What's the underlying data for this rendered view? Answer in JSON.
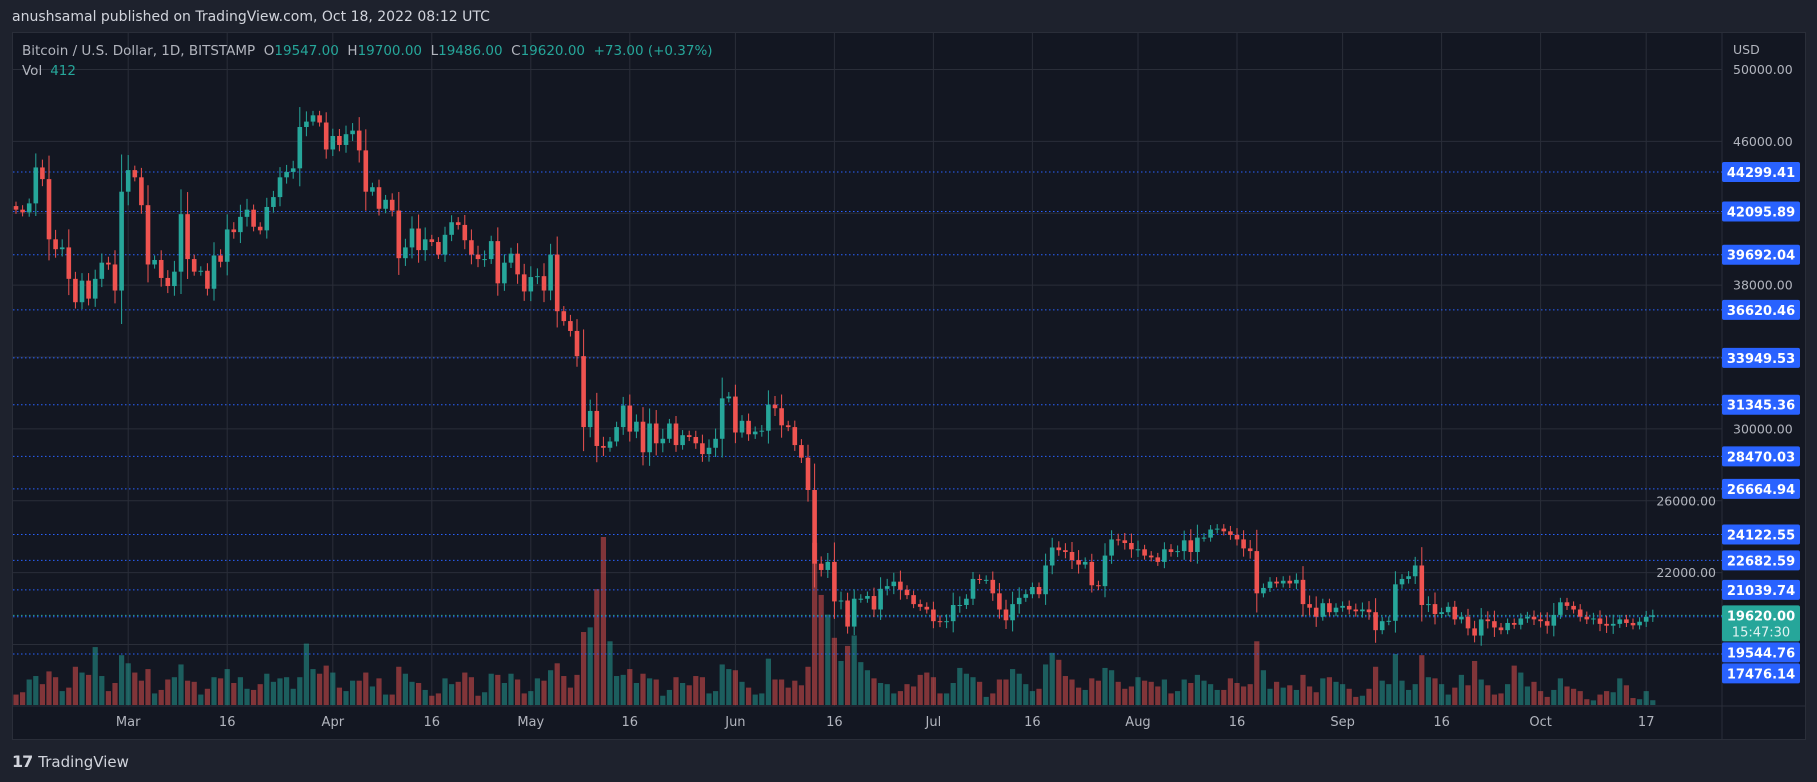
{
  "header": {
    "published": "anushsamal published on TradingView.com, Oct 18, 2022 08:12 UTC"
  },
  "legend": {
    "symbol": "Bitcoin / U.S. Dollar, 1D, BITSTAMP",
    "o_label": "O",
    "o": "19547.00",
    "h_label": "H",
    "h": "19700.00",
    "l_label": "L",
    "l": "19486.00",
    "c_label": "C",
    "c": "19620.00",
    "change": "+73.00 (+0.37%)",
    "vol_label": "Vol",
    "vol": "412"
  },
  "price_axis": {
    "currency": "USD",
    "countdown": "15:47:30"
  },
  "footer": {
    "brand": "TradingView",
    "logo_icon": "tradingview-logo-icon"
  },
  "colors": {
    "up": "#26a69a",
    "down": "#ef5350",
    "level": "#2962ff",
    "background": "#131722",
    "grid": "#2a2e39"
  },
  "chart_data": {
    "type": "candlestick",
    "title": "Bitcoin / U.S. Dollar, 1D, BITSTAMP",
    "first_date": "2022-02-12",
    "first_open": 42400,
    "ylim": [
      16000,
      51000
    ],
    "y_ticks": [
      50000,
      46000,
      38000,
      30000,
      26000,
      22000
    ],
    "grid": true,
    "x_ticks": [
      {
        "date": "2022-03-01",
        "label": "Mar"
      },
      {
        "date": "2022-03-16",
        "label": "16"
      },
      {
        "date": "2022-04-01",
        "label": "Apr"
      },
      {
        "date": "2022-04-16",
        "label": "16"
      },
      {
        "date": "2022-05-01",
        "label": "May"
      },
      {
        "date": "2022-05-16",
        "label": "16"
      },
      {
        "date": "2022-06-01",
        "label": "Jun"
      },
      {
        "date": "2022-06-16",
        "label": "16"
      },
      {
        "date": "2022-07-01",
        "label": "Jul"
      },
      {
        "date": "2022-07-16",
        "label": "16"
      },
      {
        "date": "2022-08-01",
        "label": "Aug"
      },
      {
        "date": "2022-08-16",
        "label": "16"
      },
      {
        "date": "2022-09-01",
        "label": "Sep"
      },
      {
        "date": "2022-09-16",
        "label": "16"
      },
      {
        "date": "2022-10-01",
        "label": "Oct"
      },
      {
        "date": "2022-10-17",
        "label": "17"
      }
    ],
    "levels": [
      "44299.41",
      "42095.89",
      "39692.04",
      "36620.46",
      "33949.53",
      "31345.36",
      "28470.03",
      "26664.94",
      "24122.55",
      "22682.59",
      "21039.74",
      "19544.76",
      "17476.14"
    ],
    "last_price": "19620.00",
    "close": [
      42200,
      42050,
      42550,
      44550,
      43900,
      40550,
      40000,
      40100,
      38350,
      37050,
      38250,
      37250,
      38350,
      39250,
      39150,
      37700,
      43200,
      44400,
      44000,
      42450,
      39150,
      39400,
      38400,
      37950,
      38750,
      41950,
      39450,
      38750,
      38800,
      37800,
      39650,
      39300,
      41100,
      40950,
      41800,
      42200,
      41250,
      41050,
      42350,
      42900,
      44000,
      44300,
      44500,
      46800,
      47100,
      47450,
      47050,
      45550,
      46300,
      45800,
      46400,
      46600,
      45500,
      43200,
      43450,
      42250,
      42750,
      42150,
      39500,
      40100,
      41150,
      39950,
      40550,
      40400,
      39700,
      40800,
      41500,
      41350,
      40500,
      39700,
      39450,
      39450,
      40450,
      38100,
      39250,
      39750,
      38600,
      37650,
      38450,
      38500,
      37700,
      39700,
      36550,
      36000,
      35450,
      34050,
      30100,
      31000,
      29050,
      28950,
      29300,
      30100,
      31300,
      29850,
      30400,
      28700,
      30300,
      29200,
      29450,
      30300,
      29100,
      29650,
      29550,
      29200,
      28600,
      28950,
      29450,
      31700,
      31800,
      29800,
      30450,
      29700,
      29850,
      29900,
      31350,
      31150,
      30200,
      30100,
      29100,
      28400,
      26600,
      22500,
      22150,
      22600,
      20400,
      20450,
      19000,
      20550,
      20550,
      20700,
      19950,
      21100,
      21250,
      21500,
      21050,
      20750,
      20250,
      20100,
      19950,
      19300,
      19250,
      19300,
      20200,
      20200,
      20550,
      21650,
      21600,
      21600,
      20850,
      19950,
      19350,
      20250,
      20600,
      20800,
      21200,
      20800,
      22400,
      23400,
      23250,
      23150,
      22700,
      22450,
      22600,
      21300,
      21250,
      22950,
      23850,
      23800,
      23650,
      23300,
      23300,
      22950,
      22850,
      22600,
      23300,
      23150,
      23200,
      23800,
      23150,
      23950,
      23950,
      24400,
      24450,
      24300,
      24100,
      23850,
      23350,
      23200,
      20850,
      21150,
      21500,
      21400,
      21550,
      21400,
      21600,
      20250,
      20050,
      19550,
      20300,
      19800,
      20050,
      20150,
      19950,
      19850,
      19950,
      19800,
      18800,
      19300,
      19320,
      21350,
      21650,
      21800,
      22400,
      20200,
      20250,
      19700,
      19800,
      20100,
      19400,
      19550,
      18900,
      18500,
      19400,
      19300,
      18950,
      18800,
      19200,
      19100,
      19450,
      19550,
      19400,
      19300,
      19050,
      19650,
      20350,
      20150,
      19950,
      19550,
      19400,
      19450,
      19150,
      19050,
      19150,
      19400,
      19200,
      19070,
      19270,
      19547,
      19620
    ],
    "volume": [
      900,
      1100,
      2200,
      2500,
      1800,
      2900,
      2400,
      1200,
      1500,
      3300,
      2800,
      2600,
      5000,
      2500,
      1200,
      1900,
      4300,
      3600,
      2800,
      2100,
      3100,
      1000,
      1300,
      2200,
      2400,
      3500,
      2100,
      2000,
      900,
      1400,
      2400,
      2300,
      3100,
      1900,
      2400,
      1400,
      1300,
      1800,
      2700,
      2000,
      2300,
      2400,
      1400,
      2400,
      5300,
      3100,
      2700,
      3400,
      2800,
      1500,
      1200,
      2100,
      2100,
      2800,
      1600,
      2300,
      900,
      900,
      3300,
      2700,
      2000,
      1900,
      1300,
      800,
      1000,
      2300,
      1800,
      2000,
      2800,
      2400,
      800,
      1100,
      2700,
      2600,
      1900,
      2700,
      2200,
      1000,
      1200,
      2300,
      2100,
      3000,
      3600,
      2500,
      1500,
      2600,
      6300,
      6700,
      10000,
      14500,
      5500,
      2500,
      2600,
      3100,
      1900,
      2700,
      2300,
      2200,
      800,
      1300,
      2400,
      1900,
      1700,
      2500,
      2400,
      1000,
      1200,
      3500,
      3100,
      3000,
      2000,
      1500,
      900,
      1000,
      4000,
      2200,
      2200,
      1500,
      2100,
      1700,
      3300,
      14000,
      9500,
      7800,
      5800,
      3800,
      5100,
      6000,
      3700,
      3000,
      2300,
      1900,
      1800,
      1000,
      1200,
      1800,
      1600,
      2600,
      2800,
      2400,
      1000,
      1000,
      1900,
      3200,
      2700,
      2400,
      2000,
      700,
      1000,
      2200,
      2200,
      3100,
      2700,
      1800,
      1200,
      1400,
      3500,
      4500,
      3900,
      2500,
      2200,
      1500,
      1300,
      2300,
      2100,
      3200,
      3000,
      2000,
      1400,
      1600,
      2400,
      2100,
      2000,
      1600,
      2200,
      1000,
      1200,
      2200,
      1900,
      2600,
      2100,
      1800,
      1300,
      1300,
      2300,
      1900,
      1600,
      1800,
      5500,
      3000,
      1400,
      2000,
      1500,
      1700,
      1300,
      2600,
      1600,
      1100,
      2300,
      2400,
      2000,
      1800,
      1400,
      700,
      800,
      1400,
      3300,
      2100,
      1800,
      4400,
      2100,
      1300,
      1800,
      4300,
      2400,
      2300,
      1800,
      900,
      1500,
      2600,
      1700,
      3800,
      2200,
      1700,
      900,
      1000,
      1800,
      3400,
      2800,
      1600,
      2000,
      1200,
      700,
      1300,
      2300,
      1600,
      1400,
      1200,
      500,
      400,
      900,
      1200,
      1100,
      2300,
      1700,
      600,
      500,
      1200,
      412
    ]
  }
}
